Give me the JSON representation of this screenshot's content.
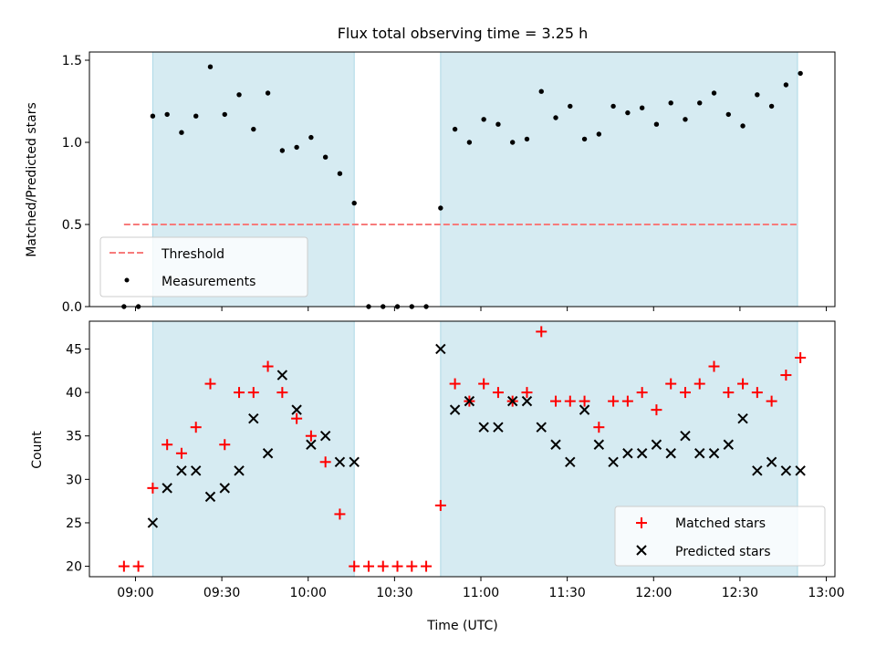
{
  "chart_data": [
    {
      "type": "scatter",
      "title": "Flux total observing time = 3.25 h",
      "ylabel": "Matched/Predicted stars",
      "xlabel": "",
      "xlim": [
        "08:44",
        "13:03"
      ],
      "ylim": [
        0,
        1.55
      ],
      "x_ticks": [
        "09:00",
        "09:30",
        "10:00",
        "10:30",
        "11:00",
        "11:30",
        "12:00",
        "12:30",
        "13:00"
      ],
      "y_ticks": [
        "0.0",
        "0.5",
        "1.0",
        "1.5"
      ],
      "x_tick_minutes": [
        540,
        570,
        600,
        630,
        660,
        690,
        720,
        750,
        780
      ],
      "y_tick_values": [
        0,
        0.5,
        1.0,
        1.5
      ],
      "shaded_intervals": [
        [
          "09:06",
          "10:16"
        ],
        [
          "10:46",
          "12:50"
        ]
      ],
      "shade_color": "#add8e6",
      "threshold": {
        "name": "Threshold",
        "value": 0.5,
        "x_range": [
          "08:56",
          "12:50"
        ],
        "color": "#f77b7b"
      },
      "legend": {
        "position": "lower-left",
        "entries": [
          "Threshold",
          "Measurements"
        ]
      },
      "series": [
        {
          "name": "Measurements",
          "color": "#000000",
          "marker": "dot",
          "x": [
            "08:56",
            "09:01",
            "09:06",
            "09:11",
            "09:16",
            "09:21",
            "09:26",
            "09:31",
            "09:36",
            "09:41",
            "09:46",
            "09:51",
            "09:56",
            "10:01",
            "10:06",
            "10:11",
            "10:16",
            "10:21",
            "10:26",
            "10:31",
            "10:36",
            "10:41",
            "10:46",
            "10:51",
            "10:56",
            "11:01",
            "11:06",
            "11:11",
            "11:16",
            "11:21",
            "11:26",
            "11:31",
            "11:36",
            "11:41",
            "11:46",
            "11:51",
            "11:56",
            "12:01",
            "12:06",
            "12:11",
            "12:16",
            "12:21",
            "12:26",
            "12:31",
            "12:36",
            "12:41",
            "12:46",
            "12:51"
          ],
          "y": [
            0.0,
            0.0,
            1.16,
            1.17,
            1.06,
            1.16,
            1.46,
            1.17,
            1.29,
            1.08,
            1.3,
            0.95,
            0.97,
            1.03,
            0.91,
            0.81,
            0.63,
            0.0,
            0.0,
            0.0,
            0.0,
            0.0,
            0.6,
            1.08,
            1.0,
            1.14,
            1.11,
            1.0,
            1.02,
            1.31,
            1.15,
            1.22,
            1.02,
            1.05,
            1.22,
            1.18,
            1.21,
            1.11,
            1.24,
            1.14,
            1.24,
            1.3,
            1.17,
            1.1,
            1.29,
            1.22,
            1.35,
            1.42
          ]
        }
      ]
    },
    {
      "type": "scatter",
      "title": "",
      "ylabel": "Count",
      "xlabel": "Time (UTC)",
      "xlim": [
        "08:44",
        "13:03"
      ],
      "ylim": [
        18.8,
        48.2
      ],
      "x_ticks": [
        "09:00",
        "09:30",
        "10:00",
        "10:30",
        "11:00",
        "11:30",
        "12:00",
        "12:30",
        "13:00"
      ],
      "y_ticks": [
        "20",
        "25",
        "30",
        "35",
        "40",
        "45"
      ],
      "x_tick_minutes": [
        540,
        570,
        600,
        630,
        660,
        690,
        720,
        750,
        780
      ],
      "y_tick_values": [
        20,
        25,
        30,
        35,
        40,
        45
      ],
      "shaded_intervals": [
        [
          "09:06",
          "10:16"
        ],
        [
          "10:46",
          "12:50"
        ]
      ],
      "shade_color": "#add8e6",
      "legend": {
        "position": "lower-right",
        "entries": [
          "Matched stars",
          "Predicted stars"
        ]
      },
      "series": [
        {
          "name": "Matched stars",
          "color": "#ff0000",
          "marker": "plus",
          "x": [
            "08:56",
            "09:01",
            "09:06",
            "09:11",
            "09:16",
            "09:21",
            "09:26",
            "09:31",
            "09:36",
            "09:41",
            "09:46",
            "09:51",
            "09:56",
            "10:01",
            "10:06",
            "10:11",
            "10:16",
            "10:21",
            "10:26",
            "10:31",
            "10:36",
            "10:41",
            "10:46",
            "10:51",
            "10:56",
            "11:01",
            "11:06",
            "11:11",
            "11:16",
            "11:21",
            "11:26",
            "11:31",
            "11:36",
            "11:41",
            "11:46",
            "11:51",
            "11:56",
            "12:01",
            "12:06",
            "12:11",
            "12:16",
            "12:21",
            "12:26",
            "12:31",
            "12:36",
            "12:41",
            "12:46",
            "12:51"
          ],
          "y": [
            20,
            20,
            29,
            34,
            33,
            36,
            41,
            34,
            40,
            40,
            43,
            40,
            37,
            35,
            32,
            26,
            20,
            20,
            20,
            20,
            20,
            20,
            27,
            41,
            39,
            41,
            40,
            39,
            40,
            47,
            39,
            39,
            39,
            36,
            39,
            39,
            40,
            38,
            41,
            40,
            41,
            43,
            40,
            41,
            40,
            39,
            42,
            44
          ]
        },
        {
          "name": "Predicted stars",
          "color": "#000000",
          "marker": "cross",
          "x": [
            "09:06",
            "09:11",
            "09:16",
            "09:21",
            "09:26",
            "09:31",
            "09:36",
            "09:41",
            "09:46",
            "09:51",
            "09:56",
            "10:01",
            "10:06",
            "10:11",
            "10:16",
            "10:46",
            "10:51",
            "10:56",
            "11:01",
            "11:06",
            "11:11",
            "11:16",
            "11:21",
            "11:26",
            "11:31",
            "11:36",
            "11:41",
            "11:46",
            "11:51",
            "11:56",
            "12:01",
            "12:06",
            "12:11",
            "12:16",
            "12:21",
            "12:26",
            "12:31",
            "12:36",
            "12:41",
            "12:46",
            "12:51"
          ],
          "y": [
            25,
            29,
            31,
            31,
            28,
            29,
            31,
            37,
            33,
            42,
            38,
            34,
            35,
            32,
            32,
            45,
            38,
            39,
            36,
            36,
            39,
            39,
            36,
            34,
            32,
            38,
            34,
            32,
            33,
            33,
            34,
            33,
            35,
            33,
            33,
            34,
            37,
            31,
            32,
            31,
            31
          ]
        }
      ]
    }
  ]
}
